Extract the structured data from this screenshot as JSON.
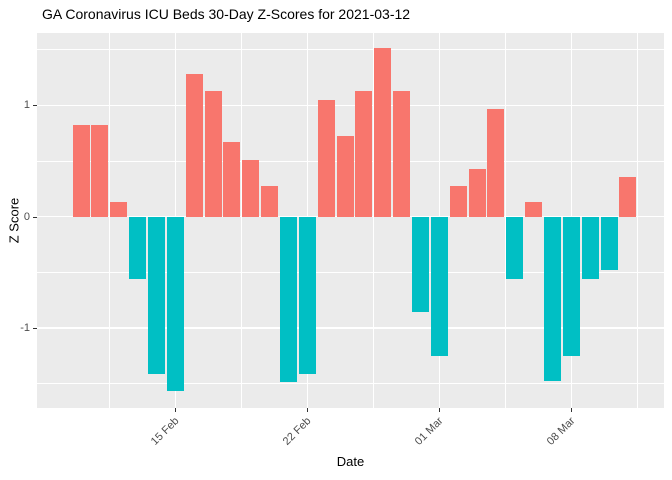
{
  "chart_data": {
    "type": "bar",
    "title": "GA Coronavirus ICU Beds 30-Day Z-Scores for 2021-03-12",
    "xlabel": "Date",
    "ylabel": "Z Score",
    "x": [
      "2021-02-10",
      "2021-02-11",
      "2021-02-12",
      "2021-02-13",
      "2021-02-14",
      "2021-02-15",
      "2021-02-16",
      "2021-02-17",
      "2021-02-18",
      "2021-02-19",
      "2021-02-20",
      "2021-02-21",
      "2021-02-22",
      "2021-02-23",
      "2021-02-24",
      "2021-02-25",
      "2021-02-26",
      "2021-02-27",
      "2021-02-28",
      "2021-03-01",
      "2021-03-02",
      "2021-03-03",
      "2021-03-04",
      "2021-03-05",
      "2021-03-06",
      "2021-03-07",
      "2021-03-08",
      "2021-03-09",
      "2021-03-10",
      "2021-03-11"
    ],
    "values": [
      0.82,
      0.82,
      0.13,
      -0.56,
      -1.41,
      -1.57,
      1.28,
      1.13,
      0.67,
      0.51,
      0.28,
      -1.49,
      -1.41,
      1.05,
      0.73,
      1.13,
      1.52,
      1.13,
      -0.86,
      -1.25,
      0.28,
      0.43,
      0.97,
      -0.56,
      0.13,
      -1.48,
      -1.25,
      -0.56,
      -0.48,
      0.36
    ],
    "x_tick_labels": [
      {
        "label": "15 Feb",
        "index": 5
      },
      {
        "label": "22 Feb",
        "index": 12
      },
      {
        "label": "01 Mar",
        "index": 19
      },
      {
        "label": "08 Mar",
        "index": 26
      }
    ],
    "x_minor_indices": [
      1.5,
      8.5,
      15.5,
      22.5,
      29.5
    ],
    "y_ticks": [
      {
        "label": "1",
        "value": 1
      },
      {
        "label": "0",
        "value": 0
      },
      {
        "label": "-1",
        "value": -1
      }
    ],
    "y_minor": [
      1.5,
      0.5,
      -0.5,
      -1.5
    ],
    "ylim": [
      -1.73,
      1.66
    ],
    "grid": true,
    "legend": "none",
    "colors": {
      "positive": "#F8766D",
      "negative": "#00BFC4",
      "panel_bg": "#EBEBEB",
      "gridline": "#FFFFFF",
      "axis_text": "#4D4D4D",
      "tick_mark": "#333333",
      "title_text": "#000000"
    }
  }
}
